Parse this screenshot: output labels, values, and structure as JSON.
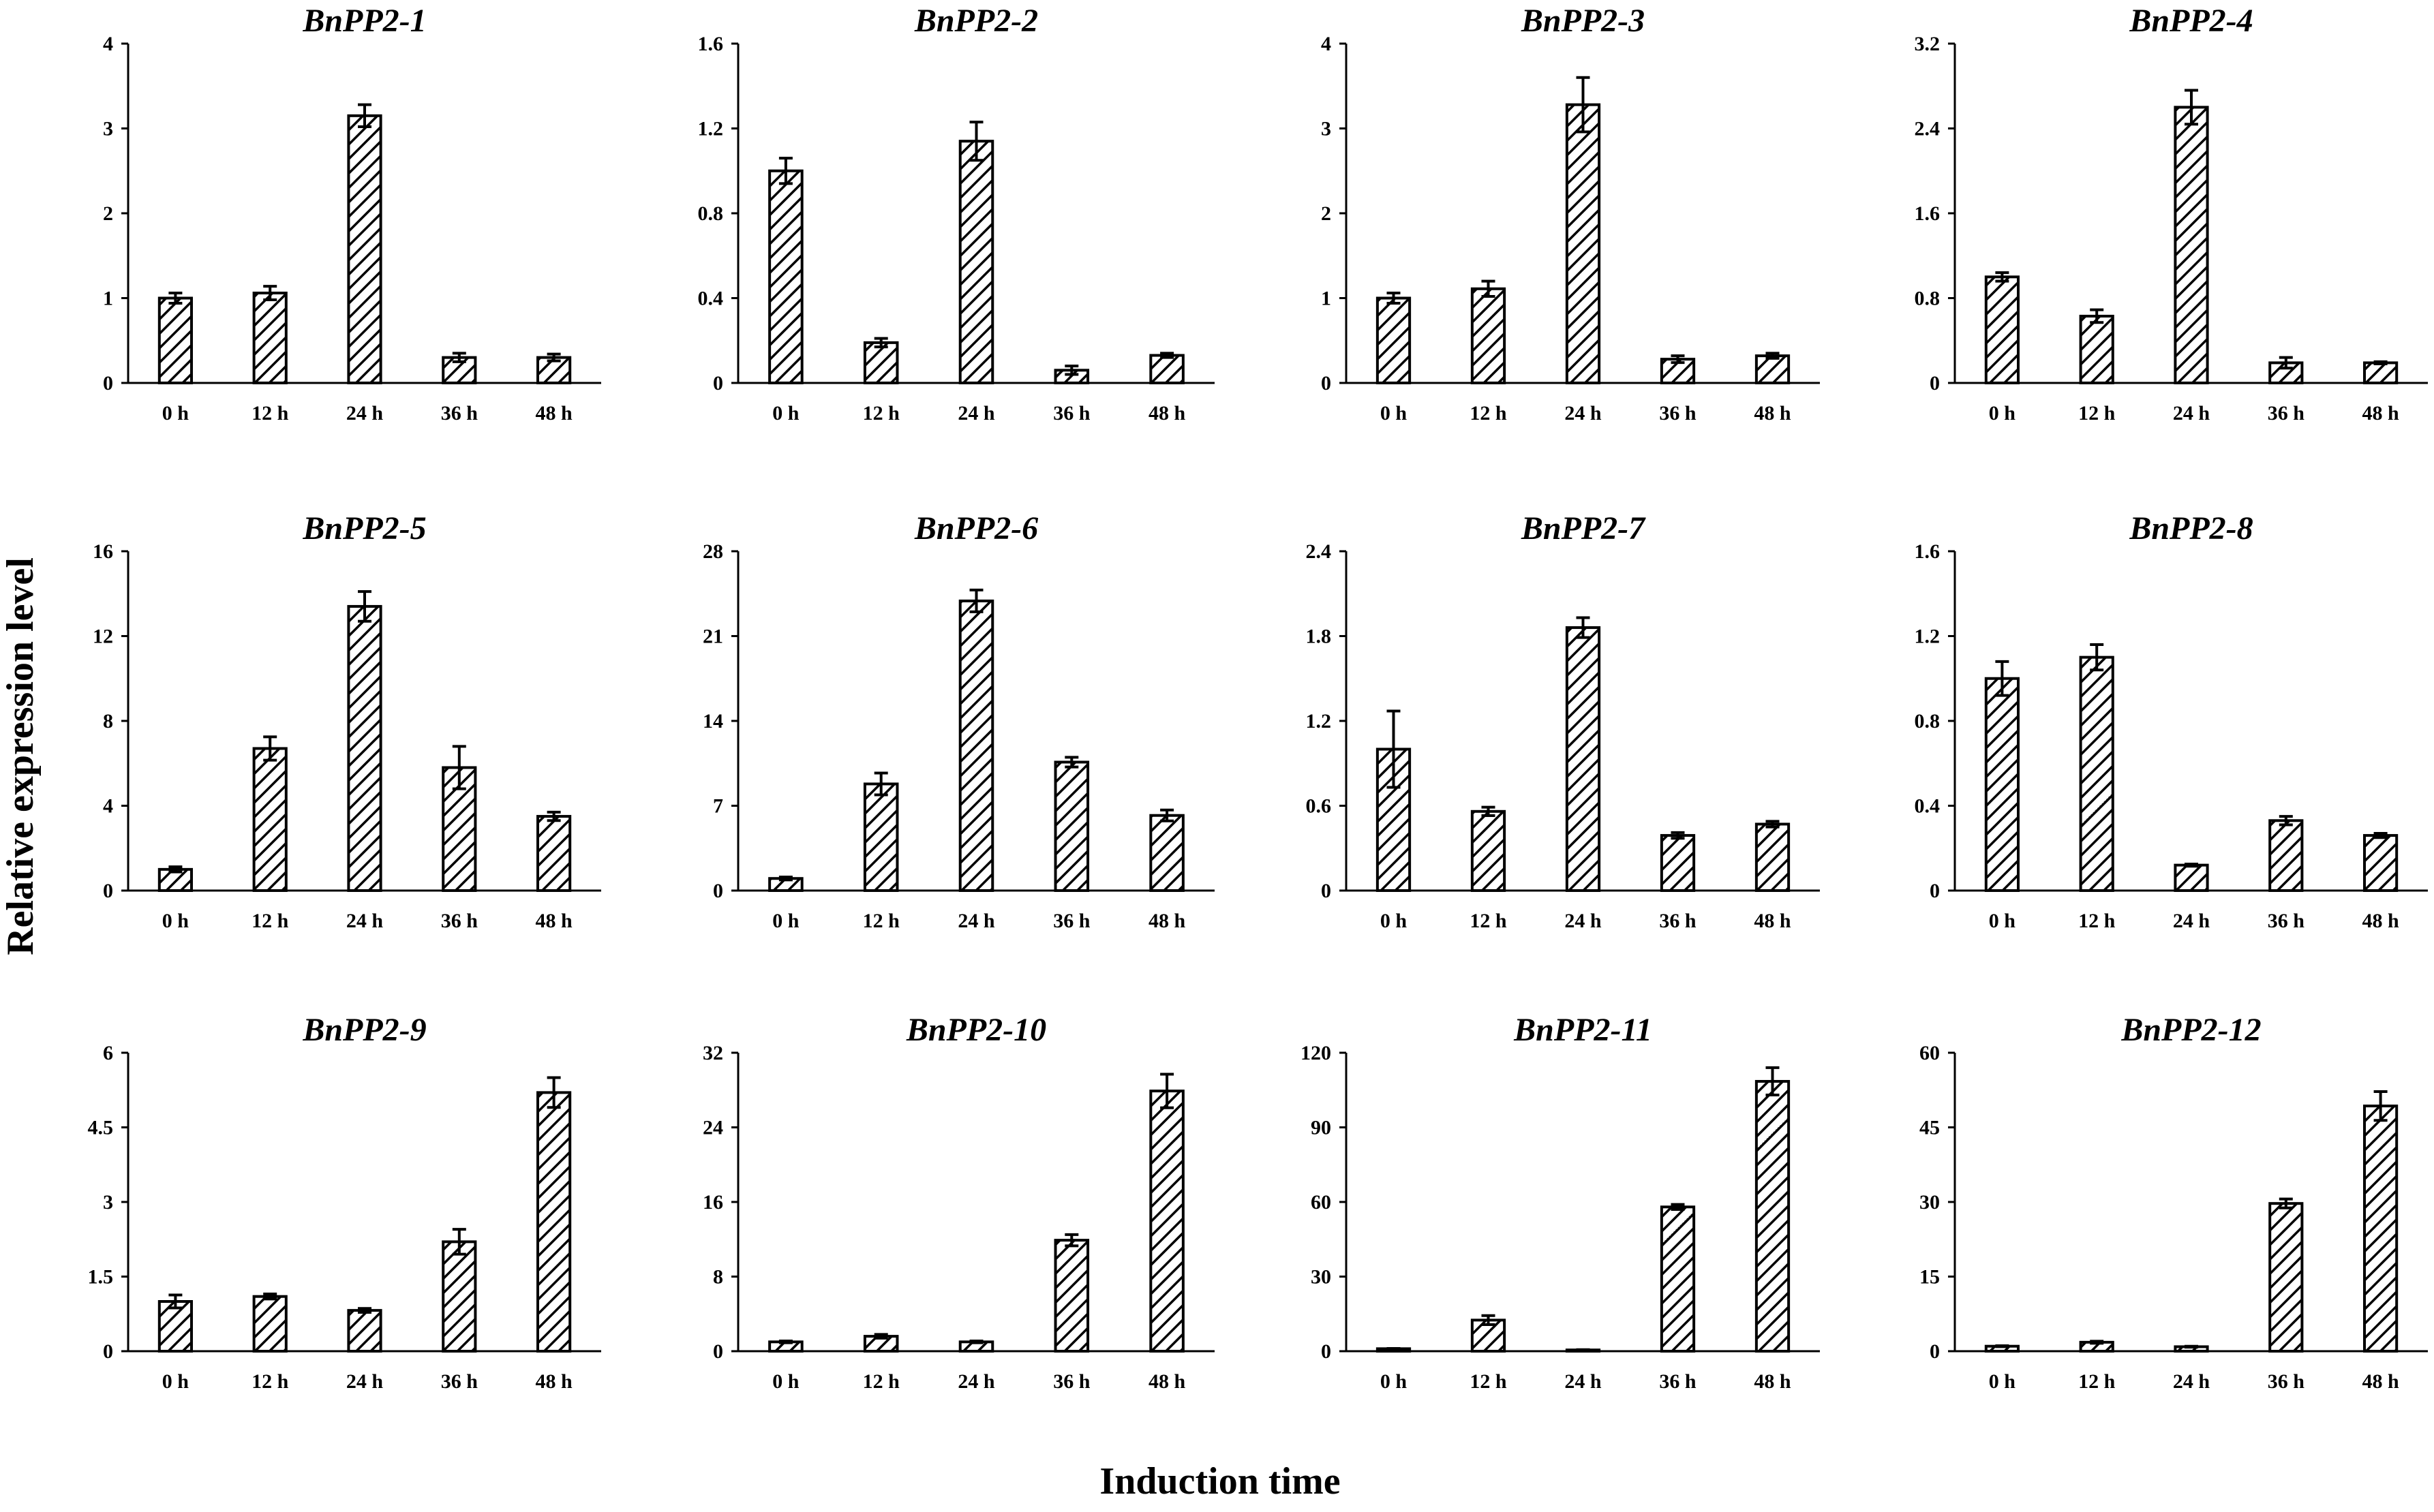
{
  "figure": {
    "ylabel": "Relative expression level",
    "xlabel": "Induction time"
  },
  "chart_data": [
    {
      "type": "bar",
      "title": "BnPP2-1",
      "categories": [
        "0 h",
        "12 h",
        "24 h",
        "36 h",
        "48 h"
      ],
      "values": [
        1.0,
        1.06,
        3.15,
        0.3,
        0.3
      ],
      "errors": [
        0.06,
        0.08,
        0.13,
        0.05,
        0.04
      ],
      "ylim": [
        0,
        4
      ],
      "yticks": [
        "0",
        "1",
        "2",
        "3",
        "4"
      ]
    },
    {
      "type": "bar",
      "title": "BnPP2-2",
      "categories": [
        "0 h",
        "12 h",
        "24 h",
        "36 h",
        "48 h"
      ],
      "values": [
        1.0,
        0.19,
        1.14,
        0.06,
        0.13
      ],
      "errors": [
        0.06,
        0.02,
        0.09,
        0.02,
        0.01
      ],
      "ylim": [
        0,
        1.6
      ],
      "yticks": [
        "0",
        "0.4",
        "0.8",
        "1.2",
        "1.6"
      ]
    },
    {
      "type": "bar",
      "title": "BnPP2-3",
      "categories": [
        "0 h",
        "12 h",
        "24 h",
        "36 h",
        "48 h"
      ],
      "values": [
        1.0,
        1.11,
        3.28,
        0.28,
        0.32
      ],
      "errors": [
        0.06,
        0.09,
        0.32,
        0.04,
        0.03
      ],
      "ylim": [
        0,
        4
      ],
      "yticks": [
        "0",
        "1",
        "2",
        "3",
        "4"
      ]
    },
    {
      "type": "bar",
      "title": "BnPP2-4",
      "categories": [
        "0 h",
        "12 h",
        "24 h",
        "36 h",
        "48 h"
      ],
      "values": [
        1.0,
        0.63,
        2.6,
        0.19,
        0.19
      ],
      "errors": [
        0.04,
        0.06,
        0.16,
        0.05,
        0.01
      ],
      "ylim": [
        0,
        3.2
      ],
      "yticks": [
        "0",
        "0.8",
        "1.6",
        "2.4",
        "3.2"
      ]
    },
    {
      "type": "bar",
      "title": "BnPP2-5",
      "categories": [
        "0 h",
        "12 h",
        "24 h",
        "36 h",
        "48 h"
      ],
      "values": [
        1.0,
        6.7,
        13.4,
        5.8,
        3.5
      ],
      "errors": [
        0.12,
        0.55,
        0.7,
        1.0,
        0.2
      ],
      "ylim": [
        0,
        16
      ],
      "yticks": [
        "0",
        "4",
        "8",
        "12",
        "16"
      ]
    },
    {
      "type": "bar",
      "title": "BnPP2-6",
      "categories": [
        "0 h",
        "12 h",
        "24 h",
        "36 h",
        "48 h"
      ],
      "values": [
        1.0,
        8.8,
        23.9,
        10.6,
        6.2
      ],
      "errors": [
        0.12,
        0.9,
        0.9,
        0.4,
        0.45
      ],
      "ylim": [
        0,
        28
      ],
      "yticks": [
        "0",
        "7",
        "14",
        "21",
        "28"
      ]
    },
    {
      "type": "bar",
      "title": "BnPP2-7",
      "categories": [
        "0 h",
        "12 h",
        "24 h",
        "36 h",
        "48 h"
      ],
      "values": [
        1.0,
        0.56,
        1.86,
        0.39,
        0.47
      ],
      "errors": [
        0.27,
        0.03,
        0.07,
        0.02,
        0.02
      ],
      "ylim": [
        0,
        2.4
      ],
      "yticks": [
        "0",
        "0.6",
        "1.2",
        "1.8",
        "2.4"
      ]
    },
    {
      "type": "bar",
      "title": "BnPP2-8",
      "categories": [
        "0 h",
        "12 h",
        "24 h",
        "36 h",
        "48 h"
      ],
      "values": [
        1.0,
        1.1,
        0.12,
        0.33,
        0.26
      ],
      "errors": [
        0.08,
        0.06,
        0.005,
        0.02,
        0.01
      ],
      "ylim": [
        0,
        1.6
      ],
      "yticks": [
        "0",
        "0.4",
        "0.8",
        "1.2",
        "1.6"
      ]
    },
    {
      "type": "bar",
      "title": "BnPP2-9",
      "categories": [
        "0 h",
        "12 h",
        "24 h",
        "36 h",
        "48 h"
      ],
      "values": [
        1.0,
        1.1,
        0.82,
        2.2,
        5.2
      ],
      "errors": [
        0.13,
        0.05,
        0.04,
        0.25,
        0.3
      ],
      "ylim": [
        0,
        6
      ],
      "yticks": [
        "0",
        "1.5",
        "3",
        "4.5",
        "6"
      ]
    },
    {
      "type": "bar",
      "title": "BnPP2-10",
      "categories": [
        "0 h",
        "12 h",
        "24 h",
        "36 h",
        "48 h"
      ],
      "values": [
        1.0,
        1.6,
        1.0,
        11.9,
        27.9
      ],
      "errors": [
        0.1,
        0.2,
        0.1,
        0.6,
        1.8
      ],
      "ylim": [
        0,
        32
      ],
      "yticks": [
        "0",
        "8",
        "16",
        "24",
        "32"
      ]
    },
    {
      "type": "bar",
      "title": "BnPP2-11",
      "categories": [
        "0 h",
        "12 h",
        "24 h",
        "36 h",
        "48 h"
      ],
      "values": [
        1.0,
        12.5,
        0.5,
        58.0,
        108.5
      ],
      "errors": [
        0.1,
        1.8,
        0.1,
        1.0,
        5.5
      ],
      "ylim": [
        0,
        120
      ],
      "yticks": [
        "0",
        "30",
        "60",
        "90",
        "120"
      ]
    },
    {
      "type": "bar",
      "title": "BnPP2-12",
      "categories": [
        "0 h",
        "12 h",
        "24 h",
        "36 h",
        "48 h"
      ],
      "values": [
        1.0,
        1.8,
        0.9,
        29.7,
        49.3
      ],
      "errors": [
        0.1,
        0.2,
        0.1,
        0.9,
        2.9
      ],
      "ylim": [
        0,
        60
      ],
      "yticks": [
        "0",
        "15",
        "30",
        "45",
        "60"
      ]
    }
  ]
}
